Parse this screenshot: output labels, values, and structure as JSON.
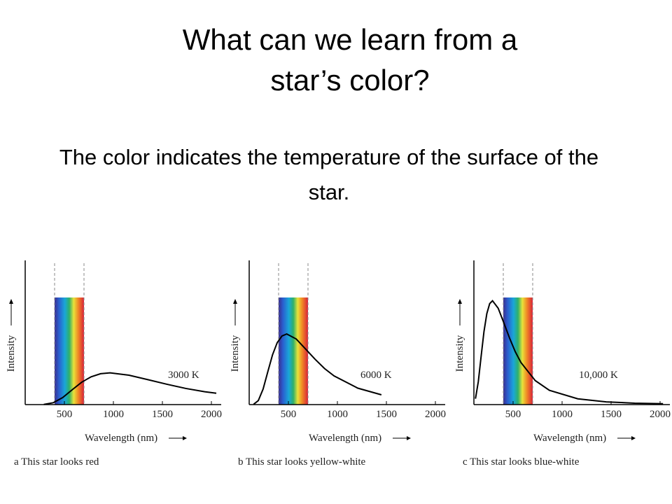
{
  "title": "What can we learn from  a star’s color?",
  "text": "The color indicates the temperature of the surface of the star.",
  "chart_data": [
    {
      "type": "line",
      "annotation": "3000 K",
      "caption": "a  This star looks red",
      "x_label": "Wavelength (nm)",
      "y_label": "Intensity",
      "xlim": [
        100,
        2100
      ],
      "xticks": [
        500,
        1000,
        1500,
        2000
      ],
      "ylim": [
        0,
        1
      ],
      "visible_band": [
        400,
        700
      ],
      "x": [
        290,
        386,
        483,
        580,
        676,
        773,
        869,
        966,
        1159,
        1352,
        1546,
        1739,
        1932,
        2050
      ],
      "series": [
        {
          "color": "#000000",
          "values": [
            0.001,
            0.013,
            0.049,
            0.103,
            0.155,
            0.193,
            0.214,
            0.22,
            0.204,
            0.173,
            0.141,
            0.112,
            0.089,
            0.079
          ]
        }
      ]
    },
    {
      "type": "line",
      "annotation": "6000 K",
      "caption": "b  This star looks yellow-white",
      "x_label": "Wavelength (nm)",
      "y_label": "Intensity",
      "xlim": [
        100,
        2100
      ],
      "xticks": [
        500,
        1000,
        1500,
        2000
      ],
      "ylim": [
        0,
        1
      ],
      "visible_band": [
        400,
        700
      ],
      "x": [
        145,
        193,
        242,
        290,
        338,
        386,
        435,
        483,
        580,
        676,
        773,
        869,
        966,
        1208,
        1449
      ],
      "series": [
        {
          "color": "#000000",
          "values": [
            0.002,
            0.028,
            0.108,
            0.228,
            0.345,
            0.43,
            0.476,
            0.49,
            0.455,
            0.385,
            0.314,
            0.25,
            0.199,
            0.114,
            0.068
          ]
        }
      ]
    },
    {
      "type": "line",
      "annotation": "10,000 K",
      "caption": "c  This star looks blue-white",
      "x_label": "Wavelength (nm)",
      "y_label": "Intensity",
      "xlim": [
        100,
        2100
      ],
      "xticks": [
        500,
        1000,
        1500,
        2000
      ],
      "ylim": [
        0,
        1
      ],
      "visible_band": [
        400,
        700
      ],
      "x": [
        116,
        145,
        174,
        203,
        232,
        261,
        290,
        348,
        406,
        464,
        522,
        580,
        725,
        870,
        1160,
        1450,
        1740,
        2030
      ],
      "series": [
        {
          "color": "#000000",
          "values": [
            0.041,
            0.159,
            0.336,
            0.507,
            0.631,
            0.7,
            0.72,
            0.668,
            0.566,
            0.461,
            0.367,
            0.292,
            0.167,
            0.099,
            0.04,
            0.019,
            0.01,
            0.006
          ]
        }
      ]
    }
  ]
}
